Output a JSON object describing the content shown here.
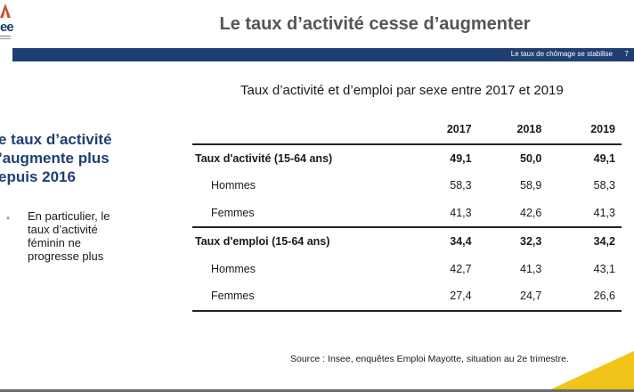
{
  "logo": {
    "text": "ee"
  },
  "header": {
    "title": "Le taux d’activité cesse d’augmenter"
  },
  "banner": {
    "text": "Le taux de chômage se stabilise",
    "page_number": "7"
  },
  "side": {
    "heading": "e taux d’activité ’augmente plus epuis 2016",
    "bullet": "En particulier, le taux d’activité féminin ne progresse plus"
  },
  "table": {
    "title": "Taux d’activité et d’emploi par sexe entre 2017 et 2019",
    "headers": [
      "2017",
      "2018",
      "2019"
    ],
    "rows": [
      {
        "label": "Taux d'activité (15-64 ans)",
        "values": [
          "49,1",
          "50,0",
          "49,1"
        ]
      },
      {
        "label": "Hommes",
        "values": [
          "58,3",
          "58,9",
          "58,3"
        ]
      },
      {
        "label": "Femmes",
        "values": [
          "41,3",
          "42,6",
          "41,3"
        ]
      },
      {
        "label": "Taux d'emploi (15-64 ans)",
        "values": [
          "34,4",
          "32,3",
          "34,2"
        ]
      },
      {
        "label": "Hommes",
        "values": [
          "42,7",
          "41,3",
          "43,1"
        ]
      },
      {
        "label": "Femmes",
        "values": [
          "27,4",
          "24,7",
          "26,6"
        ]
      }
    ]
  },
  "source": "Source : Insee, enquêtes Emploi Mayotte, situation au 2e trimestre.",
  "colors": {
    "banner": "#1f3f73",
    "heading": "#1f3f73",
    "accent": "#f2c318"
  }
}
